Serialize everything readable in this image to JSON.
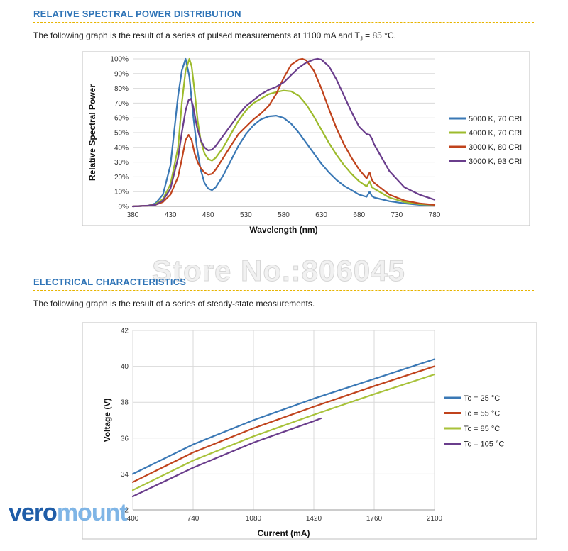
{
  "colors": {
    "accent": "#2f74b7",
    "rule": "#e7b400",
    "grid": "#d9d9d9",
    "frame": "#bfbfbf"
  },
  "section1": {
    "title": "RELATIVE SPECTRAL POWER DISTRIBUTION",
    "intro_pre": "The following graph is the result of a series of pulsed measurements at 1100 mA and T",
    "intro_sub": "J",
    "intro_post": " = 85 °C."
  },
  "section2": {
    "title": "ELECTRICAL CHARACTERISTICS",
    "intro": "The following graph is the result of a series of steady-state measurements."
  },
  "watermark": "Store No.:806045",
  "logo": {
    "part1": "vero",
    "part2": "mount"
  },
  "chart_data": [
    {
      "type": "line",
      "xlabel": "Wavelength (nm)",
      "ylabel": "Relative Spectral Power",
      "xlim": [
        380,
        780
      ],
      "ylim": [
        0,
        100
      ],
      "x_ticks": [
        "380",
        "430",
        "480",
        "530",
        "580",
        "630",
        "680",
        "730",
        "780"
      ],
      "y_ticks": [
        "0%",
        "10%",
        "20%",
        "30%",
        "40%",
        "50%",
        "60%",
        "70%",
        "80%",
        "90%",
        "100%"
      ],
      "grid": "horizontal",
      "legend": "right",
      "series": [
        {
          "name": "5000 K, 70 CRI",
          "color": "#3a78b5",
          "x": [
            380,
            400,
            410,
            420,
            430,
            440,
            445,
            450,
            455,
            460,
            465,
            470,
            475,
            480,
            485,
            490,
            500,
            510,
            520,
            530,
            540,
            550,
            560,
            570,
            580,
            590,
            600,
            610,
            620,
            630,
            640,
            650,
            660,
            670,
            680,
            690,
            694,
            697,
            700,
            720,
            740,
            760,
            780
          ],
          "y": [
            0,
            0.5,
            2,
            8,
            28,
            75,
            92,
            100,
            88,
            62,
            40,
            25,
            16,
            12,
            11,
            13,
            21,
            31,
            41,
            49,
            55,
            59,
            61,
            61.5,
            60,
            56,
            50,
            43,
            36,
            29,
            23,
            18,
            14,
            11,
            8,
            6.5,
            10,
            7,
            6,
            3.5,
            2,
            1,
            0.5
          ]
        },
        {
          "name": "4000 K, 70 CRI",
          "color": "#9dbb2c",
          "x": [
            380,
            400,
            410,
            420,
            430,
            440,
            445,
            450,
            455,
            458,
            462,
            466,
            470,
            475,
            480,
            485,
            490,
            500,
            510,
            520,
            530,
            540,
            550,
            560,
            570,
            580,
            590,
            600,
            610,
            620,
            630,
            640,
            650,
            660,
            670,
            680,
            690,
            694,
            697,
            700,
            720,
            740,
            760,
            780
          ],
          "y": [
            0,
            0.5,
            1.5,
            5,
            15,
            40,
            70,
            92,
            100,
            95,
            78,
            58,
            45,
            36,
            32,
            31,
            33,
            40,
            49,
            58,
            65,
            70,
            73,
            76,
            77.5,
            78.5,
            78,
            75,
            69,
            61,
            52,
            43,
            35,
            28,
            22,
            17,
            13.5,
            17,
            13,
            12,
            6,
            3,
            1.5,
            1
          ]
        },
        {
          "name": "3000 K, 80 CRI",
          "color": "#c0431c",
          "x": [
            380,
            400,
            410,
            420,
            430,
            440,
            445,
            450,
            454,
            458,
            462,
            466,
            470,
            475,
            480,
            485,
            490,
            500,
            510,
            520,
            530,
            540,
            550,
            560,
            570,
            580,
            590,
            600,
            605,
            610,
            620,
            630,
            640,
            650,
            660,
            670,
            680,
            690,
            694,
            697,
            700,
            720,
            740,
            760,
            780
          ],
          "y": [
            0,
            0.5,
            1,
            3,
            8,
            20,
            32,
            45,
            48.5,
            45,
            36,
            30,
            26,
            23,
            21.5,
            22,
            25,
            33,
            41,
            49,
            54,
            59,
            63,
            68,
            76,
            87,
            96,
            99.5,
            100,
            99,
            92,
            80,
            66,
            53,
            42,
            33,
            25,
            19,
            23,
            18,
            16,
            8,
            4,
            2,
            1
          ]
        },
        {
          "name": "3000 K, 93 CRI",
          "color": "#6a3d8c",
          "x": [
            380,
            400,
            410,
            420,
            430,
            440,
            445,
            450,
            454,
            457,
            460,
            465,
            470,
            475,
            480,
            485,
            490,
            500,
            510,
            520,
            530,
            540,
            550,
            560,
            570,
            580,
            590,
            600,
            610,
            620,
            625,
            630,
            640,
            650,
            660,
            670,
            680,
            690,
            694,
            697,
            700,
            720,
            740,
            760,
            780
          ],
          "y": [
            0,
            0.5,
            1,
            4,
            12,
            33,
            50,
            65,
            72,
            73,
            68,
            54,
            45,
            40,
            38,
            38.5,
            41,
            48,
            55,
            62,
            68,
            72,
            76,
            79,
            81,
            84,
            89,
            94,
            97.5,
            99.5,
            100,
            99.5,
            95,
            86,
            75,
            64,
            54,
            49,
            48.5,
            46,
            42,
            24,
            13,
            8,
            4.5
          ]
        }
      ]
    },
    {
      "type": "line",
      "xlabel": "Current (mA)",
      "ylabel": "Voltage (V)",
      "xlim": [
        400,
        2100
      ],
      "ylim": [
        32,
        42
      ],
      "x_ticks": [
        "400",
        "740",
        "1080",
        "1420",
        "1760",
        "2100"
      ],
      "y_ticks": [
        "32",
        "34",
        "36",
        "38",
        "40",
        "42"
      ],
      "grid": "both",
      "legend": "right",
      "series": [
        {
          "name": "Tc = 25 °C",
          "color": "#3a78b5",
          "x": [
            400,
            740,
            1080,
            1420,
            1760,
            2100
          ],
          "y": [
            34.0,
            35.65,
            37.0,
            38.2,
            39.3,
            40.4
          ]
        },
        {
          "name": "Tc = 55 °C",
          "color": "#c0431c",
          "x": [
            400,
            740,
            1080,
            1420,
            1760,
            2100
          ],
          "y": [
            33.55,
            35.2,
            36.55,
            37.75,
            38.9,
            40.0
          ]
        },
        {
          "name": "Tc = 85 °C",
          "color": "#a8c23a",
          "x": [
            400,
            740,
            1080,
            1420,
            1760,
            2100
          ],
          "y": [
            33.1,
            34.75,
            36.1,
            37.3,
            38.45,
            39.55
          ]
        },
        {
          "name": "Tc = 105 °C",
          "color": "#6a3d8c",
          "x": [
            400,
            740,
            1080,
            1420,
            1460
          ],
          "y": [
            32.75,
            34.35,
            35.75,
            36.95,
            37.1
          ]
        }
      ]
    }
  ]
}
